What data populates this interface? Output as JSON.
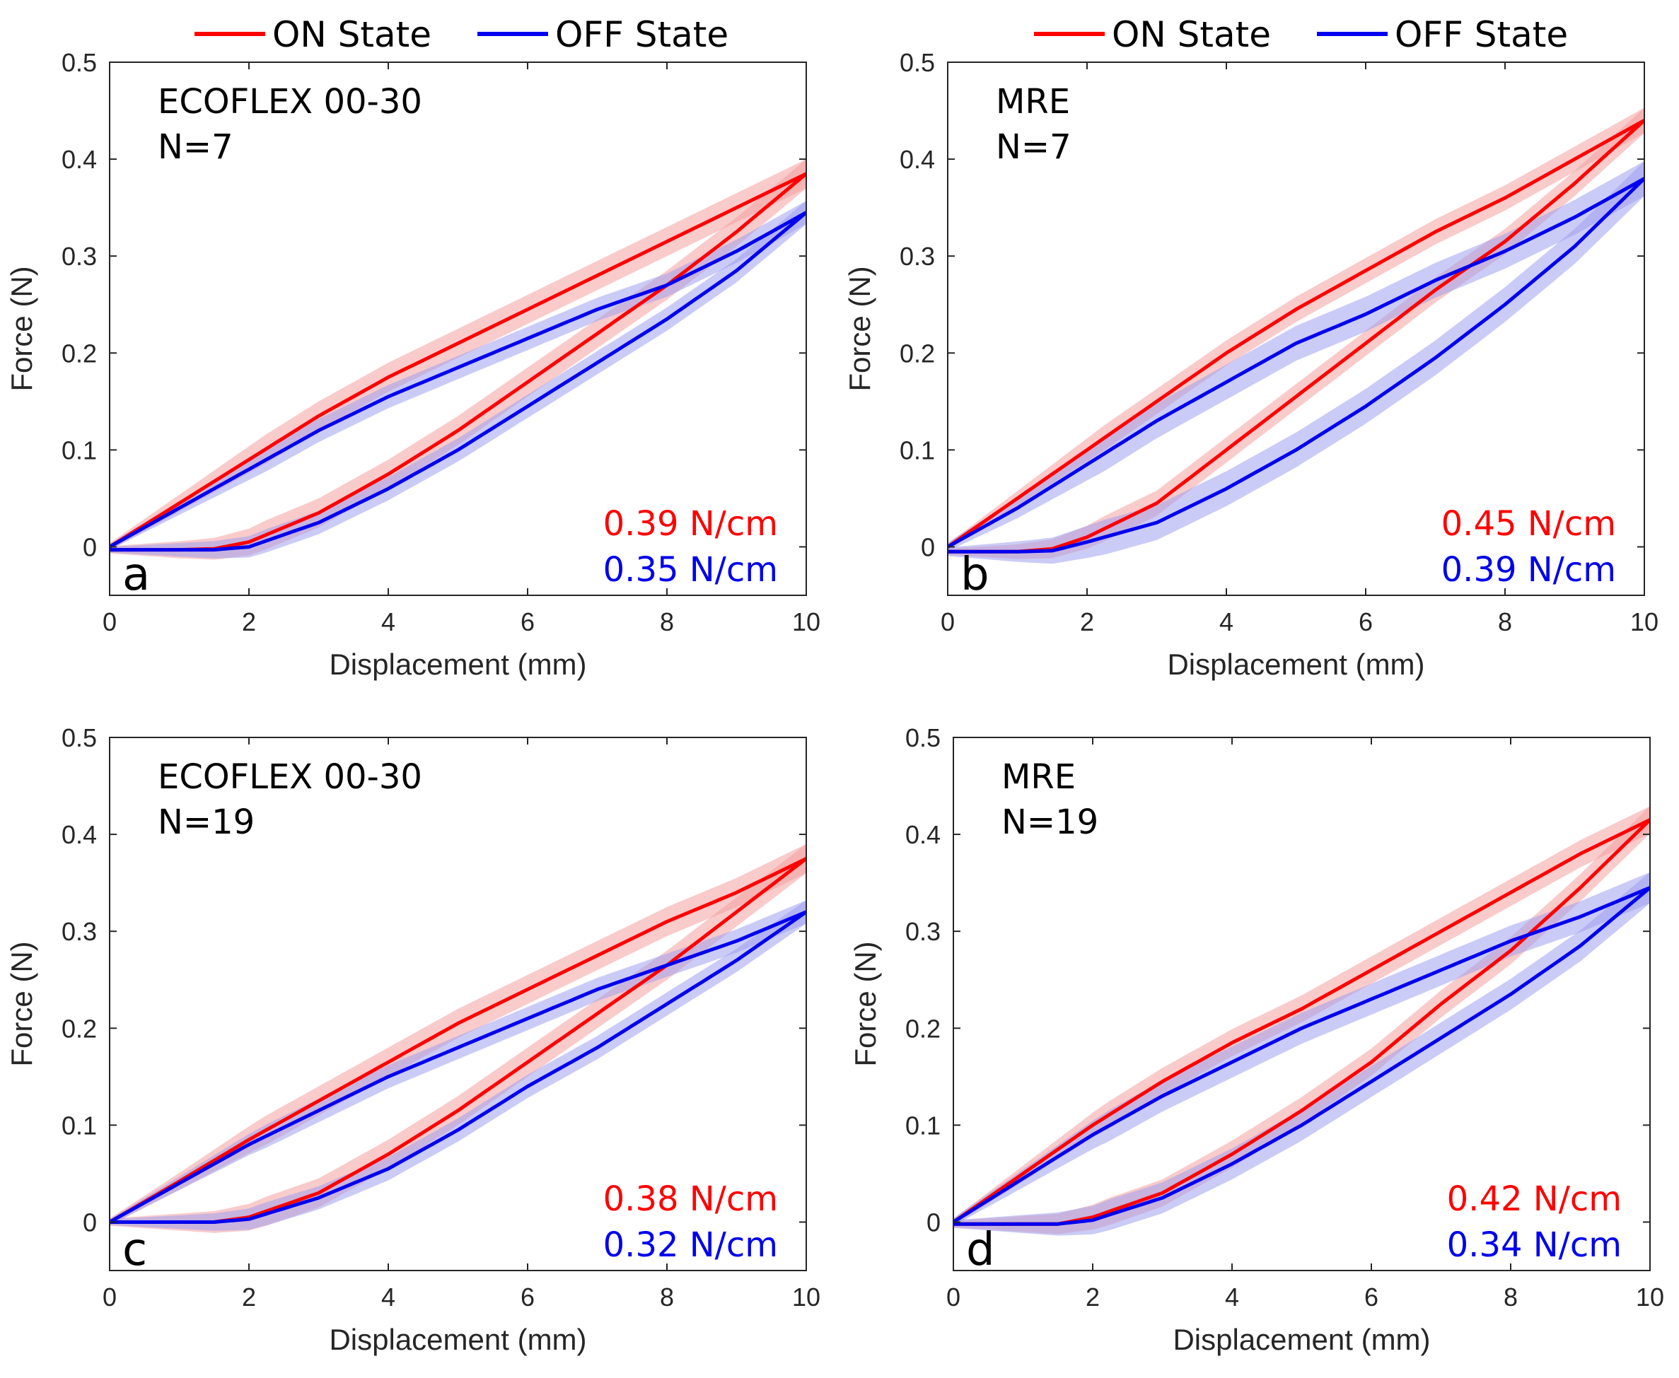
{
  "figure": {
    "colors": {
      "on": "#ff0000",
      "off": "#0000ee",
      "on_band": "#f4a0a0",
      "off_band": "#a0a0f0"
    },
    "legend": {
      "on_label": "ON State",
      "off_label": "OFF State"
    }
  },
  "chart_data": [
    {
      "type": "line",
      "panel_letter": "a",
      "material": "ECOFLEX 00-30",
      "n_label": "N=7",
      "xlabel": "Displacement (mm)",
      "ylabel": "Force (N)",
      "xlim": [
        0,
        10
      ],
      "ylim": [
        -0.05,
        0.5
      ],
      "xticks": [
        "0",
        "2",
        "4",
        "6",
        "8",
        "10"
      ],
      "yticks": [
        "0",
        "0.1",
        "0.2",
        "0.3",
        "0.4",
        "0.5"
      ],
      "stiffness_on": "0.39 N/cm",
      "stiffness_off": "0.35 N/cm",
      "band_on": 0.015,
      "band_off": 0.012,
      "series": [
        {
          "name": "ON State",
          "loading": {
            "x": [
              0,
              1,
              2,
              3,
              4,
              5,
              6,
              7,
              8,
              9,
              10
            ],
            "y": [
              0,
              0.045,
              0.09,
              0.135,
              0.175,
              0.21,
              0.245,
              0.28,
              0.315,
              0.35,
              0.385
            ]
          },
          "unloading": {
            "x": [
              0,
              1,
              1.5,
              2,
              3,
              4,
              5,
              6,
              7,
              8,
              9,
              10
            ],
            "y": [
              -0.003,
              -0.003,
              -0.002,
              0.005,
              0.035,
              0.075,
              0.12,
              0.17,
              0.22,
              0.27,
              0.325,
              0.385
            ]
          }
        },
        {
          "name": "OFF State",
          "loading": {
            "x": [
              0,
              1,
              2,
              3,
              4,
              5,
              6,
              7,
              8,
              9,
              10
            ],
            "y": [
              0,
              0.04,
              0.08,
              0.12,
              0.155,
              0.185,
              0.215,
              0.245,
              0.27,
              0.305,
              0.345
            ]
          },
          "unloading": {
            "x": [
              0,
              1,
              1.5,
              2,
              3,
              4,
              5,
              6,
              7,
              8,
              9,
              10
            ],
            "y": [
              -0.003,
              -0.003,
              -0.003,
              0.0,
              0.025,
              0.06,
              0.1,
              0.145,
              0.19,
              0.235,
              0.285,
              0.345
            ]
          }
        }
      ]
    },
    {
      "type": "line",
      "panel_letter": "b",
      "material": "MRE",
      "n_label": "N=7",
      "xlabel": "Displacement (mm)",
      "ylabel": "Force (N)",
      "xlim": [
        0,
        10
      ],
      "ylim": [
        -0.05,
        0.5
      ],
      "xticks": [
        "0",
        "2",
        "4",
        "6",
        "8",
        "10"
      ],
      "yticks": [
        "0",
        "0.1",
        "0.2",
        "0.3",
        "0.4",
        "0.5"
      ],
      "stiffness_on": "0.45 N/cm",
      "stiffness_off": "0.39 N/cm",
      "band_on": 0.013,
      "band_off": 0.018,
      "series": [
        {
          "name": "ON State",
          "loading": {
            "x": [
              0,
              1,
              2,
              3,
              4,
              5,
              6,
              7,
              8,
              9,
              10
            ],
            "y": [
              0,
              0.05,
              0.1,
              0.15,
              0.2,
              0.245,
              0.285,
              0.325,
              0.36,
              0.4,
              0.44
            ]
          },
          "unloading": {
            "x": [
              0,
              1,
              1.5,
              2,
              3,
              4,
              5,
              6,
              7,
              8,
              9,
              10
            ],
            "y": [
              -0.005,
              -0.005,
              -0.002,
              0.01,
              0.045,
              0.1,
              0.155,
              0.21,
              0.265,
              0.315,
              0.375,
              0.44
            ]
          }
        },
        {
          "name": "OFF State",
          "loading": {
            "x": [
              0,
              1,
              2,
              3,
              4,
              5,
              6,
              7,
              8,
              9,
              10
            ],
            "y": [
              0,
              0.04,
              0.085,
              0.13,
              0.17,
              0.21,
              0.24,
              0.275,
              0.305,
              0.34,
              0.38
            ]
          },
          "unloading": {
            "x": [
              0,
              1,
              1.5,
              2,
              3,
              4,
              5,
              6,
              7,
              8,
              9,
              10
            ],
            "y": [
              -0.005,
              -0.005,
              -0.004,
              0.005,
              0.025,
              0.06,
              0.1,
              0.145,
              0.195,
              0.25,
              0.31,
              0.38
            ]
          }
        }
      ]
    },
    {
      "type": "line",
      "panel_letter": "c",
      "material": "ECOFLEX 00-30",
      "n_label": "N=19",
      "xlabel": "Displacement (mm)",
      "ylabel": "Force (N)",
      "xlim": [
        0,
        10
      ],
      "ylim": [
        -0.05,
        0.5
      ],
      "xticks": [
        "0",
        "2",
        "4",
        "6",
        "8",
        "10"
      ],
      "yticks": [
        "0",
        "0.1",
        "0.2",
        "0.3",
        "0.4",
        "0.5"
      ],
      "stiffness_on": "0.38 N/cm",
      "stiffness_off": "0.32 N/cm",
      "band_on": 0.015,
      "band_off": 0.012,
      "series": [
        {
          "name": "ON State",
          "loading": {
            "x": [
              0,
              1,
              2,
              3,
              4,
              5,
              6,
              7,
              8,
              9,
              10
            ],
            "y": [
              0,
              0.042,
              0.085,
              0.125,
              0.165,
              0.205,
              0.24,
              0.275,
              0.31,
              0.34,
              0.375
            ]
          },
          "unloading": {
            "x": [
              0,
              1,
              1.5,
              2,
              3,
              4,
              5,
              6,
              7,
              8,
              9,
              10
            ],
            "y": [
              0,
              0,
              0,
              0.005,
              0.03,
              0.07,
              0.115,
              0.165,
              0.215,
              0.265,
              0.32,
              0.375
            ]
          }
        },
        {
          "name": "OFF State",
          "loading": {
            "x": [
              0,
              1,
              2,
              3,
              4,
              5,
              6,
              7,
              8,
              9,
              10
            ],
            "y": [
              0,
              0.04,
              0.08,
              0.115,
              0.15,
              0.18,
              0.21,
              0.24,
              0.265,
              0.29,
              0.32
            ]
          },
          "unloading": {
            "x": [
              0,
              1,
              1.5,
              2,
              3,
              4,
              5,
              6,
              7,
              8,
              9,
              10
            ],
            "y": [
              0,
              0,
              0,
              0.003,
              0.025,
              0.055,
              0.095,
              0.14,
              0.18,
              0.225,
              0.27,
              0.32
            ]
          }
        }
      ]
    },
    {
      "type": "line",
      "panel_letter": "d",
      "material": "MRE",
      "n_label": "N=19",
      "xlabel": "Displacement (mm)",
      "ylabel": "Force (N)",
      "xlim": [
        0,
        10
      ],
      "ylim": [
        -0.05,
        0.5
      ],
      "xticks": [
        "0",
        "2",
        "4",
        "6",
        "8",
        "10"
      ],
      "yticks": [
        "0",
        "0.1",
        "0.2",
        "0.3",
        "0.4",
        "0.5"
      ],
      "stiffness_on": "0.42 N/cm",
      "stiffness_off": "0.34 N/cm",
      "band_on": 0.014,
      "band_off": 0.016,
      "series": [
        {
          "name": "ON State",
          "loading": {
            "x": [
              0,
              1,
              2,
              3,
              4,
              5,
              6,
              7,
              8,
              9,
              10
            ],
            "y": [
              0,
              0.05,
              0.1,
              0.145,
              0.185,
              0.22,
              0.26,
              0.3,
              0.34,
              0.38,
              0.415
            ]
          },
          "unloading": {
            "x": [
              0,
              1,
              1.5,
              2,
              3,
              4,
              5,
              6,
              7,
              8,
              9,
              10
            ],
            "y": [
              -0.002,
              -0.002,
              -0.002,
              0.005,
              0.03,
              0.07,
              0.115,
              0.165,
              0.225,
              0.28,
              0.345,
              0.415
            ]
          }
        },
        {
          "name": "OFF State",
          "loading": {
            "x": [
              0,
              1,
              2,
              3,
              4,
              5,
              6,
              7,
              8,
              9,
              10
            ],
            "y": [
              0,
              0.045,
              0.09,
              0.13,
              0.165,
              0.2,
              0.23,
              0.26,
              0.29,
              0.315,
              0.345
            ]
          },
          "unloading": {
            "x": [
              0,
              1,
              1.5,
              2,
              3,
              4,
              5,
              6,
              7,
              8,
              9,
              10
            ],
            "y": [
              -0.002,
              -0.002,
              -0.002,
              0.002,
              0.025,
              0.06,
              0.1,
              0.145,
              0.19,
              0.235,
              0.285,
              0.345
            ]
          }
        }
      ]
    }
  ]
}
